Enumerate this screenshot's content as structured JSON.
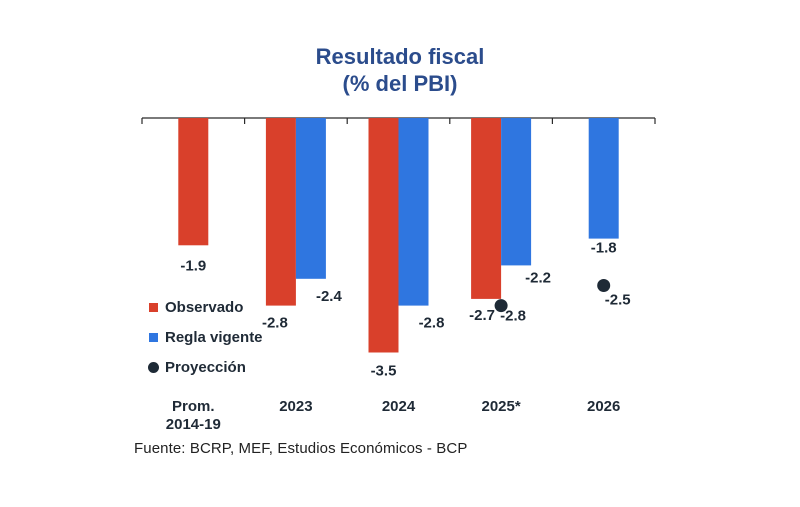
{
  "title_line1": "Resultado fiscal",
  "title_line2": "(% del PBI)",
  "source": "Fuente: BCRP, MEF, Estudios Económicos - BCP",
  "colors": {
    "observed": "#d9402b",
    "rule": "#2f76e0",
    "projection": "#1e2a36",
    "title": "#2b4c8c"
  },
  "legend": [
    {
      "label": "Observado",
      "kind": "bar",
      "color": "#d9402b"
    },
    {
      "label": "Regla vigente",
      "kind": "bar",
      "color": "#2f76e0"
    },
    {
      "label": "Proyección",
      "kind": "dot",
      "color": "#1e2a36"
    }
  ],
  "chart_data": {
    "type": "bar",
    "title": "Resultado fiscal (% del PBI)",
    "categories": [
      "Prom.\n2014-19",
      "2023",
      "2024",
      "2025*",
      "2026"
    ],
    "ylim": [
      -4,
      0
    ],
    "grid": false,
    "legend_position": "left",
    "series": [
      {
        "name": "Observado",
        "type": "bar",
        "values": [
          -1.9,
          -2.8,
          -3.5,
          -2.7,
          null
        ],
        "labels": [
          "-1.9",
          "-2.8",
          "-3.5",
          "-2.7",
          null
        ]
      },
      {
        "name": "Regla vigente",
        "type": "bar",
        "values": [
          null,
          -2.4,
          -2.8,
          -2.2,
          -1.8
        ],
        "labels": [
          null,
          "-2.4",
          "-2.8",
          "-2.2",
          "-1.8"
        ]
      },
      {
        "name": "Proyección",
        "type": "scatter",
        "values": [
          null,
          null,
          null,
          -2.8,
          -2.5
        ],
        "labels": [
          null,
          null,
          null,
          "-2.8",
          "-2.5"
        ]
      }
    ]
  }
}
